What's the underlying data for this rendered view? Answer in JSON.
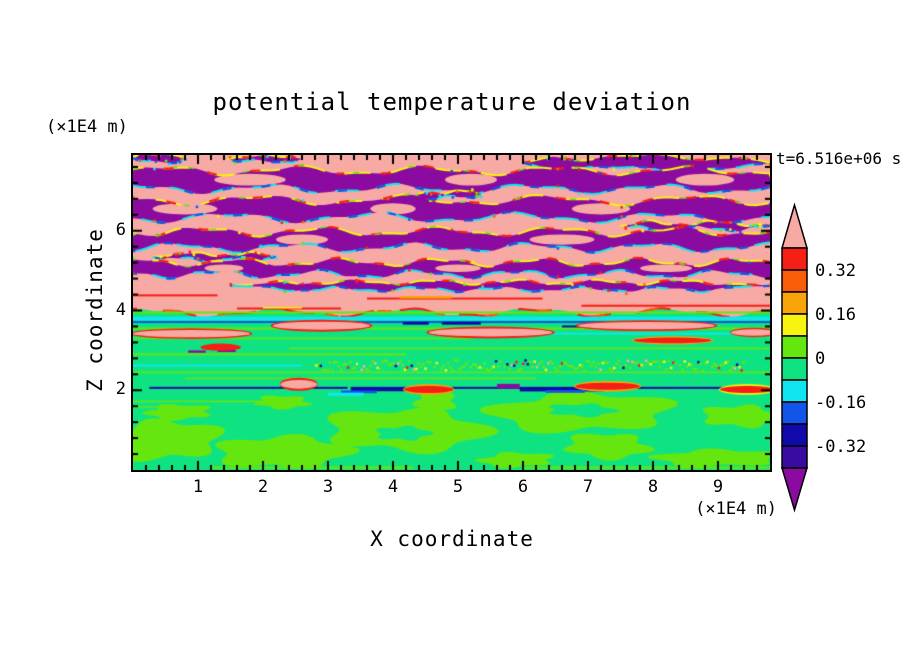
{
  "title": "potential temperature deviation",
  "timestamp_label": "t=6.516e+06 s",
  "axes": {
    "x_label": "X coordinate",
    "x_units": "(×1E4 m)",
    "z_label": "Z coordinate",
    "z_units": "(×1E4 m)",
    "x_ticks": [
      1,
      2,
      3,
      4,
      5,
      6,
      7,
      8,
      9
    ],
    "x_minor_step": 0.2,
    "z_ticks": [
      2,
      4,
      6
    ],
    "z_minor_step": 0.4
  },
  "colorbar": {
    "segment_colors": [
      "#F52015",
      "#F95D07",
      "#F9A407",
      "#F7F410",
      "#66E60F",
      "#0FE381",
      "#10E6EF",
      "#1255E8",
      "#1109A9",
      "#3A0BA1"
    ],
    "arrow_top_color": "#F7A9A4",
    "arrow_bottom_color": "#8B0BA1",
    "labels": [
      {
        "text": "0.32",
        "boundary_index": 1
      },
      {
        "text": "0.16",
        "boundary_index": 3
      },
      {
        "text": "0",
        "boundary_index": 5
      },
      {
        "text": "-0.16",
        "boundary_index": 7
      },
      {
        "text": "-0.32",
        "boundary_index": 9
      }
    ]
  },
  "chart_data": {
    "type": "heatmap",
    "title": "potential temperature deviation",
    "xlabel": "X coordinate",
    "ylabel": "Z coordinate",
    "x_units_factor": "1E4 m",
    "z_units_factor": "1E4 m",
    "time_annotation": "t=6.516e+06 s",
    "x_range": [
      0,
      9.8
    ],
    "z_range": [
      0,
      7.9
    ],
    "contour_levels": [
      -0.4,
      -0.32,
      -0.24,
      -0.16,
      -0.08,
      0,
      0.08,
      0.16,
      0.24,
      0.32,
      0.4
    ],
    "labeled_levels": [
      0.32,
      0.16,
      0,
      -0.16,
      -0.32
    ],
    "palette": {
      "pink": "#F7A9A4",
      "purple": "#8B0BA1",
      "red": "#F52015",
      "orangered": "#F95D07",
      "orange": "#F9A407",
      "yellow": "#F7F410",
      "chartreuse": "#66E60F",
      "spring": "#0FE381",
      "cyan": "#10E6EF",
      "blue": "#1255E8",
      "navy": "#1109A9",
      "indigo": "#3A0BA1",
      "frame": "#000000"
    },
    "field_structure": {
      "background_bottom": {
        "color": "spring"
      },
      "pink_top": {
        "z_edge": 3.95,
        "amp": 0.08,
        "freq": 0.5,
        "phase": 1.0,
        "color": "pink"
      },
      "bands": [
        {
          "z": 7.82,
          "th": 0.16,
          "amp": 0.03,
          "freq": 0.8,
          "phase": 0.3,
          "x0": 0,
          "x1": 0.8,
          "holes": []
        },
        {
          "z": 7.8,
          "th": 0.12,
          "amp": 0.03,
          "freq": 1.0,
          "phase": 1.2,
          "x0": 1.45,
          "x1": 2.6,
          "holes": []
        },
        {
          "z": 7.7,
          "th": 0.3,
          "amp": 0.06,
          "freq": 0.5,
          "phase": 2.0,
          "x0": 6.0,
          "x1": 9.8,
          "holes": []
        },
        {
          "z": 7.28,
          "th": 0.46,
          "amp": 0.09,
          "freq": 0.5,
          "phase": 0.0,
          "x0": 0,
          "x1": 9.8,
          "holes": [
            [
              1.8,
              0.55
            ],
            [
              5.2,
              0.4
            ],
            [
              8.8,
              0.45
            ]
          ]
        },
        {
          "z": 6.55,
          "th": 0.44,
          "amp": 0.1,
          "freq": 0.45,
          "phase": 2.4,
          "x0": 0,
          "x1": 9.8,
          "holes": [
            [
              0.8,
              0.5
            ],
            [
              4.0,
              0.35
            ],
            [
              7.2,
              0.45
            ]
          ]
        },
        {
          "z": 6.9,
          "th": 0.14,
          "amp": 0.04,
          "freq": 1.2,
          "phase": 0.8,
          "x0": 4.35,
          "x1": 5.35,
          "holes": []
        },
        {
          "z": 6.12,
          "th": 0.14,
          "amp": 0.05,
          "freq": 1.0,
          "phase": 2.0,
          "x0": 7.5,
          "x1": 9.8,
          "holes": []
        },
        {
          "z": 5.78,
          "th": 0.4,
          "amp": 0.09,
          "freq": 0.55,
          "phase": 4.2,
          "x0": 0,
          "x1": 9.8,
          "holes": [
            [
              2.6,
              0.4
            ],
            [
              6.6,
              0.5
            ]
          ]
        },
        {
          "z": 5.35,
          "th": 0.12,
          "amp": 0.04,
          "freq": 1.1,
          "phase": 1.5,
          "x0": 0.3,
          "x1": 2.2,
          "holes": []
        },
        {
          "z": 5.06,
          "th": 0.3,
          "amp": 0.08,
          "freq": 0.65,
          "phase": 1.2,
          "x0": 0,
          "x1": 9.8,
          "holes": [
            [
              1.4,
              0.3
            ],
            [
              5.0,
              0.35
            ],
            [
              8.2,
              0.4
            ]
          ]
        },
        {
          "z": 4.62,
          "th": 0.18,
          "amp": 0.05,
          "freq": 0.8,
          "phase": 3.3,
          "x0": 1.5,
          "x1": 9.8,
          "holes": []
        }
      ],
      "stripes": [
        {
          "color": "red",
          "z": 4.38,
          "x0": 0.0,
          "x1": 1.3,
          "th": 0.05
        },
        {
          "color": "red",
          "z": 4.3,
          "x0": 3.6,
          "x1": 6.3,
          "th": 0.05
        },
        {
          "color": "orange",
          "z": 4.33,
          "x0": 4.1,
          "x1": 4.9,
          "th": 0.06
        },
        {
          "color": "red",
          "z": 4.12,
          "x0": 6.9,
          "x1": 9.8,
          "th": 0.05
        },
        {
          "color": "red",
          "z": 4.05,
          "x0": 1.6,
          "x1": 3.2,
          "th": 0.05
        },
        {
          "color": "yellow",
          "z": 4.07,
          "x0": 2.0,
          "x1": 2.6,
          "th": 0.04
        },
        {
          "color": "chartreuse",
          "z": 3.95,
          "x0": 0,
          "x1": 9.8,
          "th": 0.05
        },
        {
          "color": "cyan",
          "z": 3.8,
          "x0": 0,
          "x1": 9.8,
          "th": 0.09
        },
        {
          "color": "blue",
          "z": 3.71,
          "x0": 0,
          "x1": 9.8,
          "th": 0.05
        },
        {
          "color": "chartreuse",
          "z": 3.55,
          "x0": 0,
          "x1": 9.8,
          "th": 0.05
        },
        {
          "color": "cyan",
          "z": 3.42,
          "x0": 5.6,
          "x1": 9.8,
          "th": 0.05
        },
        {
          "color": "chartreuse",
          "z": 3.3,
          "x0": 0,
          "x1": 5.2,
          "th": 0.04
        },
        {
          "color": "chartreuse",
          "z": 3.05,
          "x0": 2.4,
          "x1": 9.8,
          "th": 0.04
        },
        {
          "color": "chartreuse",
          "z": 2.9,
          "x0": 0,
          "x1": 4.2,
          "th": 0.05
        },
        {
          "color": "cyan",
          "z": 2.62,
          "x0": 0,
          "x1": 2.6,
          "th": 0.05
        },
        {
          "color": "chartreuse",
          "z": 2.45,
          "x0": 0,
          "x1": 9.8,
          "th": 0.04
        },
        {
          "color": "chartreuse",
          "z": 2.3,
          "x0": 0.8,
          "x1": 6.2,
          "th": 0.04
        },
        {
          "color": "chartreuse",
          "z": 1.72,
          "x0": 0,
          "x1": 2.0,
          "th": 0.04
        },
        {
          "color": "chartreuse",
          "z": 1.58,
          "x0": 0,
          "x1": 1.2,
          "th": 0.035
        },
        {
          "color": "chartreuse",
          "z": 0.06,
          "x0": 1.2,
          "x1": 4.3,
          "th": 0.06
        },
        {
          "color": "chartreuse",
          "z": 0.06,
          "x0": 6.0,
          "x1": 9.8,
          "th": 0.06
        },
        {
          "color": "navy",
          "z": 2.06,
          "x0": 0.25,
          "x1": 3.3,
          "th": 0.05
        },
        {
          "color": "navy",
          "z": 2.03,
          "x0": 3.35,
          "x1": 4.45,
          "th": 0.11
        },
        {
          "color": "navy",
          "z": 2.06,
          "x0": 4.9,
          "x1": 6.9,
          "th": 0.05
        },
        {
          "color": "navy",
          "z": 2.02,
          "x0": 5.95,
          "x1": 7.25,
          "th": 0.1
        },
        {
          "color": "navy",
          "z": 2.06,
          "x0": 7.7,
          "x1": 9.15,
          "th": 0.05
        },
        {
          "color": "blue",
          "z": 1.96,
          "x0": 3.2,
          "x1": 3.75,
          "th": 0.07
        },
        {
          "color": "blue",
          "z": 1.97,
          "x0": 6.35,
          "x1": 6.95,
          "th": 0.07
        },
        {
          "color": "cyan",
          "z": 1.9,
          "x0": 3.0,
          "x1": 3.55,
          "th": 0.08
        },
        {
          "color": "navy",
          "z": 3.68,
          "x0": 4.15,
          "x1": 4.55,
          "th": 0.07
        },
        {
          "color": "navy",
          "z": 3.68,
          "x0": 4.75,
          "x1": 5.35,
          "th": 0.07
        },
        {
          "color": "navy",
          "z": 3.6,
          "x0": 6.6,
          "x1": 7.15,
          "th": 0.05
        },
        {
          "color": "purple",
          "z": 2.97,
          "x0": 0.85,
          "x1": 1.12,
          "th": 0.06
        },
        {
          "color": "purple",
          "z": 2.99,
          "x0": 1.3,
          "x1": 1.58,
          "th": 0.06
        },
        {
          "color": "purple",
          "z": 2.1,
          "x0": 5.6,
          "x1": 5.95,
          "th": 0.12
        }
      ],
      "ovals": [
        {
          "cx": 2.9,
          "cz": 3.62,
          "rx": 0.75,
          "rz": 0.1,
          "core": "pink",
          "rim": "red"
        },
        {
          "cx": 5.5,
          "cz": 3.45,
          "rx": 0.95,
          "rz": 0.1,
          "core": "pink",
          "rim": "red"
        },
        {
          "cx": 7.9,
          "cz": 3.62,
          "rx": 1.05,
          "rz": 0.09,
          "core": "pink",
          "rim": "red"
        },
        {
          "cx": 0.9,
          "cz": 3.42,
          "rx": 0.9,
          "rz": 0.09,
          "core": "pink",
          "rim": "red"
        },
        {
          "cx": 9.55,
          "cz": 3.45,
          "rx": 0.35,
          "rz": 0.08,
          "core": "pink",
          "rim": "red"
        },
        {
          "cx": 8.3,
          "cz": 3.25,
          "rx": 0.6,
          "rz": 0.07,
          "core": "red",
          "rim": "orange"
        },
        {
          "cx": 1.35,
          "cz": 3.08,
          "rx": 0.3,
          "rz": 0.06,
          "core": "red",
          "rim": "red"
        },
        {
          "cx": 2.55,
          "cz": 2.15,
          "rx": 0.28,
          "rz": 0.11,
          "core": "pink",
          "rim": "red"
        },
        {
          "cx": 4.55,
          "cz": 2.02,
          "rx": 0.38,
          "rz": 0.09,
          "core": "red",
          "rim": "orange"
        },
        {
          "cx": 7.3,
          "cz": 2.1,
          "rx": 0.5,
          "rz": 0.09,
          "core": "red",
          "rim": "orange"
        },
        {
          "cx": 9.45,
          "cz": 2.02,
          "rx": 0.42,
          "rz": 0.09,
          "core": "red",
          "rim": "yellow"
        }
      ],
      "blobs": [
        {
          "cx": 0.45,
          "cz": 0.75,
          "rx": 0.85,
          "rz": 0.5,
          "color": "chartreuse"
        },
        {
          "cx": 0.7,
          "cz": 1.45,
          "rx": 0.5,
          "rz": 0.18,
          "color": "chartreuse"
        },
        {
          "cx": 2.3,
          "cz": 0.45,
          "rx": 0.95,
          "rz": 0.42,
          "color": "chartreuse"
        },
        {
          "cx": 2.3,
          "cz": 1.7,
          "rx": 0.42,
          "rz": 0.15,
          "color": "chartreuse"
        },
        {
          "cx": 4.2,
          "cz": 1.0,
          "rx": 1.15,
          "rz": 0.55,
          "color": "chartreuse"
        },
        {
          "cx": 4.65,
          "cz": 1.7,
          "rx": 0.32,
          "rz": 0.26,
          "color": "chartreuse"
        },
        {
          "cx": 6.9,
          "cz": 1.45,
          "rx": 1.3,
          "rz": 0.5,
          "color": "chartreuse"
        },
        {
          "cx": 7.3,
          "cz": 0.6,
          "rx": 0.65,
          "rz": 0.3,
          "color": "chartreuse"
        },
        {
          "cx": 9.35,
          "cz": 1.35,
          "rx": 0.55,
          "rz": 0.28,
          "color": "chartreuse"
        },
        {
          "cx": 9.0,
          "cz": 0.3,
          "rx": 0.9,
          "rz": 0.22,
          "color": "chartreuse"
        },
        {
          "cx": 5.9,
          "cz": 0.25,
          "rx": 0.55,
          "rz": 0.18,
          "color": "chartreuse"
        },
        {
          "cx": 6.9,
          "cz": 1.5,
          "rx": 0.48,
          "rz": 0.16,
          "color": "spring"
        },
        {
          "cx": 4.15,
          "cz": 0.92,
          "rx": 0.38,
          "rz": 0.18,
          "color": "spring"
        }
      ],
      "speckle_band": {
        "z0": 2.52,
        "z1": 2.78,
        "x0": 2.8,
        "x1": 9.4
      }
    }
  }
}
